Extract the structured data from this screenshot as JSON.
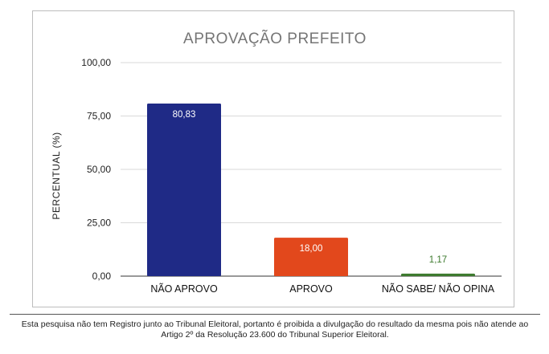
{
  "chart_data": {
    "type": "bar",
    "title": "APROVAÇÃO PREFEITO",
    "ylabel": "PERCENTUAL (%)",
    "xlabel": "",
    "categories": [
      "NÃO APROVO",
      "APROVO",
      "NÃO SABE/ NÃO OPINA"
    ],
    "values": [
      80.83,
      18.0,
      1.17
    ],
    "value_labels": [
      "80,83",
      "18,00",
      "1,17"
    ],
    "colors": [
      "#1f2a86",
      "#e2481c",
      "#3d7a2e"
    ],
    "value_label_colors": [
      "#ffffff",
      "#ffffff",
      "#3d7a2e"
    ],
    "ylim": [
      0,
      100
    ],
    "yticks": [
      0,
      25,
      50,
      75,
      100
    ],
    "ytick_labels": [
      "0,00",
      "25,00",
      "50,00",
      "75,00",
      "100,00"
    ],
    "grid": true,
    "legend": "none"
  },
  "footer": {
    "note": "Esta pesquisa não tem Registro junto ao Tribunal Eleitoral, portanto é proibida a divulgação do resultado da mesma pois não atende ao Artigo 2º da Resolução 23.600 do Tribunal Superior Eleitoral."
  }
}
